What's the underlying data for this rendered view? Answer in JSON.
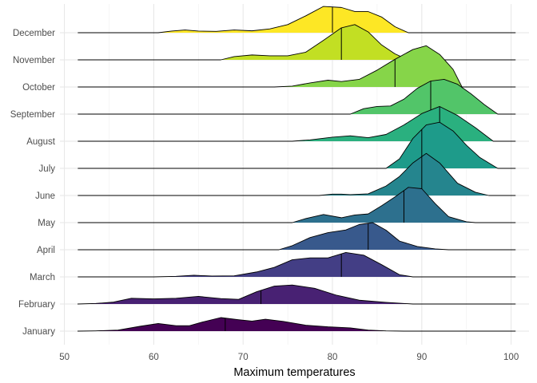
{
  "chart_data": {
    "type": "ridgeline",
    "title": "",
    "xlabel": "Maximum temperatures",
    "ylabel": "",
    "xlim": [
      49.5,
      102
    ],
    "x_ticks": [
      50,
      60,
      70,
      80,
      90,
      100
    ],
    "x_tick_labels": [
      "50",
      "60",
      "70",
      "80",
      "90",
      "100"
    ],
    "grid": true,
    "legend": "none",
    "colormap": "viridis",
    "categories": [
      "January",
      "February",
      "March",
      "April",
      "May",
      "June",
      "July",
      "August",
      "September",
      "October",
      "November",
      "December"
    ],
    "series": [
      {
        "name": "January",
        "color": "#440154",
        "x_range": [
          51.5,
          100.5
        ],
        "median": 68,
        "density": [
          [
            51.5,
            0
          ],
          [
            53.5,
            0.01
          ],
          [
            56,
            0.04
          ],
          [
            58.5,
            0.18
          ],
          [
            60.5,
            0.28
          ],
          [
            62.5,
            0.2
          ],
          [
            64,
            0.2
          ],
          [
            65.5,
            0.34
          ],
          [
            67.5,
            0.5
          ],
          [
            69.5,
            0.42
          ],
          [
            71,
            0.37
          ],
          [
            72.5,
            0.44
          ],
          [
            74.5,
            0.36
          ],
          [
            77,
            0.22
          ],
          [
            79.5,
            0.16
          ],
          [
            82,
            0.12
          ],
          [
            84,
            0.04
          ],
          [
            86,
            0.01
          ],
          [
            88,
            0
          ]
        ]
      },
      {
        "name": "February",
        "color": "#482173",
        "x_range": [
          51.5,
          100.5
        ],
        "median": 72,
        "density": [
          [
            51.5,
            0
          ],
          [
            53.5,
            0.02
          ],
          [
            55.5,
            0.07
          ],
          [
            57.5,
            0.21
          ],
          [
            60,
            0.19
          ],
          [
            62.5,
            0.21
          ],
          [
            65,
            0.28
          ],
          [
            67.5,
            0.2
          ],
          [
            69.5,
            0.17
          ],
          [
            71.5,
            0.45
          ],
          [
            73.5,
            0.66
          ],
          [
            75.5,
            0.7
          ],
          [
            78,
            0.58
          ],
          [
            80.5,
            0.32
          ],
          [
            83,
            0.14
          ],
          [
            86,
            0.06
          ],
          [
            89,
            0
          ]
        ]
      },
      {
        "name": "March",
        "color": "#433E85",
        "x_range": [
          51.5,
          100.5
        ],
        "median": 81,
        "density": [
          [
            60,
            0
          ],
          [
            62.5,
            0.02
          ],
          [
            64.5,
            0.06
          ],
          [
            66.5,
            0.03
          ],
          [
            69,
            0.04
          ],
          [
            71.5,
            0.18
          ],
          [
            73.5,
            0.35
          ],
          [
            75.5,
            0.63
          ],
          [
            77.5,
            0.7
          ],
          [
            79.5,
            0.7
          ],
          [
            81.5,
            0.9
          ],
          [
            83.5,
            0.8
          ],
          [
            85.5,
            0.45
          ],
          [
            87.5,
            0.08
          ],
          [
            89,
            0
          ]
        ]
      },
      {
        "name": "April",
        "color": "#38598C",
        "x_range": [
          51.5,
          100.5
        ],
        "median": 84,
        "density": [
          [
            74,
            0
          ],
          [
            75.5,
            0.15
          ],
          [
            77.5,
            0.45
          ],
          [
            79.5,
            0.63
          ],
          [
            81.5,
            0.73
          ],
          [
            83,
            0.93
          ],
          [
            84.5,
            1.0
          ],
          [
            86,
            0.72
          ],
          [
            87.5,
            0.32
          ],
          [
            89.5,
            0.12
          ],
          [
            91.5,
            0.03
          ],
          [
            93,
            0
          ]
        ]
      },
      {
        "name": "May",
        "color": "#2D708E",
        "x_range": [
          51.5,
          100.5
        ],
        "median": 88,
        "density": [
          [
            75.5,
            0
          ],
          [
            77,
            0.15
          ],
          [
            79,
            0.3
          ],
          [
            81,
            0.18
          ],
          [
            82.5,
            0.28
          ],
          [
            84,
            0.32
          ],
          [
            85.5,
            0.62
          ],
          [
            87,
            0.95
          ],
          [
            88.5,
            1.3
          ],
          [
            90,
            1.25
          ],
          [
            91.5,
            0.7
          ],
          [
            93,
            0.22
          ],
          [
            95,
            0.03
          ],
          [
            96,
            0
          ]
        ]
      },
      {
        "name": "June",
        "color": "#25858E",
        "x_range": [
          51.5,
          100.5
        ],
        "median": 90,
        "density": [
          [
            78.5,
            0
          ],
          [
            80,
            0.05
          ],
          [
            81,
            0.05
          ],
          [
            82,
            0.03
          ],
          [
            84,
            0.06
          ],
          [
            86,
            0.35
          ],
          [
            87.5,
            0.7
          ],
          [
            89,
            1.2
          ],
          [
            90.5,
            1.55
          ],
          [
            92,
            1.2
          ],
          [
            94,
            0.45
          ],
          [
            96,
            0.12
          ],
          [
            97.5,
            0
          ]
        ]
      },
      {
        "name": "July",
        "color": "#1E9B8A",
        "x_range": [
          51.5,
          100.5
        ],
        "median": 90,
        "density": [
          [
            86,
            0
          ],
          [
            87.5,
            0.35
          ],
          [
            89,
            1.1
          ],
          [
            90.5,
            1.6
          ],
          [
            92,
            1.7
          ],
          [
            93.5,
            1.38
          ],
          [
            95,
            0.85
          ],
          [
            96.5,
            0.4
          ],
          [
            98.5,
            0
          ]
        ]
      },
      {
        "name": "August",
        "color": "#2AB07F",
        "x_range": [
          51.5,
          100.5
        ],
        "median": 92,
        "density": [
          [
            75.5,
            0
          ],
          [
            77.5,
            0.05
          ],
          [
            80,
            0.15
          ],
          [
            82,
            0.2
          ],
          [
            84,
            0.13
          ],
          [
            86,
            0.25
          ],
          [
            88,
            0.6
          ],
          [
            90,
            1.02
          ],
          [
            92,
            1.28
          ],
          [
            94,
            0.95
          ],
          [
            96,
            0.5
          ],
          [
            98,
            0
          ]
        ]
      },
      {
        "name": "September",
        "color": "#52C569",
        "x_range": [
          51.5,
          100.5
        ],
        "median": 91,
        "density": [
          [
            82,
            0
          ],
          [
            83.5,
            0.2
          ],
          [
            85,
            0.28
          ],
          [
            86.5,
            0.3
          ],
          [
            88,
            0.55
          ],
          [
            89.5,
            0.95
          ],
          [
            91,
            1.22
          ],
          [
            92.5,
            1.28
          ],
          [
            94,
            1.1
          ],
          [
            95.5,
            0.75
          ],
          [
            97,
            0.35
          ],
          [
            98.5,
            0
          ]
        ]
      },
      {
        "name": "October",
        "color": "#86D549",
        "x_range": [
          51.5,
          100.5
        ],
        "median": 87,
        "density": [
          [
            73.5,
            0
          ],
          [
            75.5,
            0.03
          ],
          [
            77.5,
            0.15
          ],
          [
            79.5,
            0.25
          ],
          [
            81,
            0.2
          ],
          [
            83,
            0.28
          ],
          [
            85,
            0.62
          ],
          [
            87,
            1.02
          ],
          [
            89,
            1.38
          ],
          [
            90.5,
            1.52
          ],
          [
            92,
            1.2
          ],
          [
            93.5,
            0.65
          ],
          [
            94.5,
            0
          ]
        ]
      },
      {
        "name": "November",
        "color": "#C2DF23",
        "x_range": [
          51.5,
          100.5
        ],
        "median": 81,
        "density": [
          [
            67.5,
            0
          ],
          [
            69,
            0.12
          ],
          [
            71,
            0.18
          ],
          [
            73,
            0.15
          ],
          [
            75,
            0.15
          ],
          [
            77,
            0.28
          ],
          [
            79,
            0.72
          ],
          [
            81,
            1.18
          ],
          [
            82.5,
            1.3
          ],
          [
            84,
            1.03
          ],
          [
            85.5,
            0.55
          ],
          [
            87,
            0.22
          ],
          [
            88.5,
            0
          ]
        ]
      },
      {
        "name": "December",
        "color": "#FDE725",
        "x_range": [
          51.5,
          100.5
        ],
        "median": 80,
        "density": [
          [
            60.5,
            0
          ],
          [
            62,
            0.06
          ],
          [
            63.5,
            0.1
          ],
          [
            65,
            0.06
          ],
          [
            67,
            0.05
          ],
          [
            69,
            0.1
          ],
          [
            71,
            0.07
          ],
          [
            73,
            0.14
          ],
          [
            75,
            0.3
          ],
          [
            77,
            0.62
          ],
          [
            79,
            0.97
          ],
          [
            81,
            0.93
          ],
          [
            82.5,
            0.78
          ],
          [
            84,
            0.78
          ],
          [
            85.5,
            0.58
          ],
          [
            87,
            0.22
          ],
          [
            88.5,
            0
          ]
        ]
      }
    ]
  }
}
